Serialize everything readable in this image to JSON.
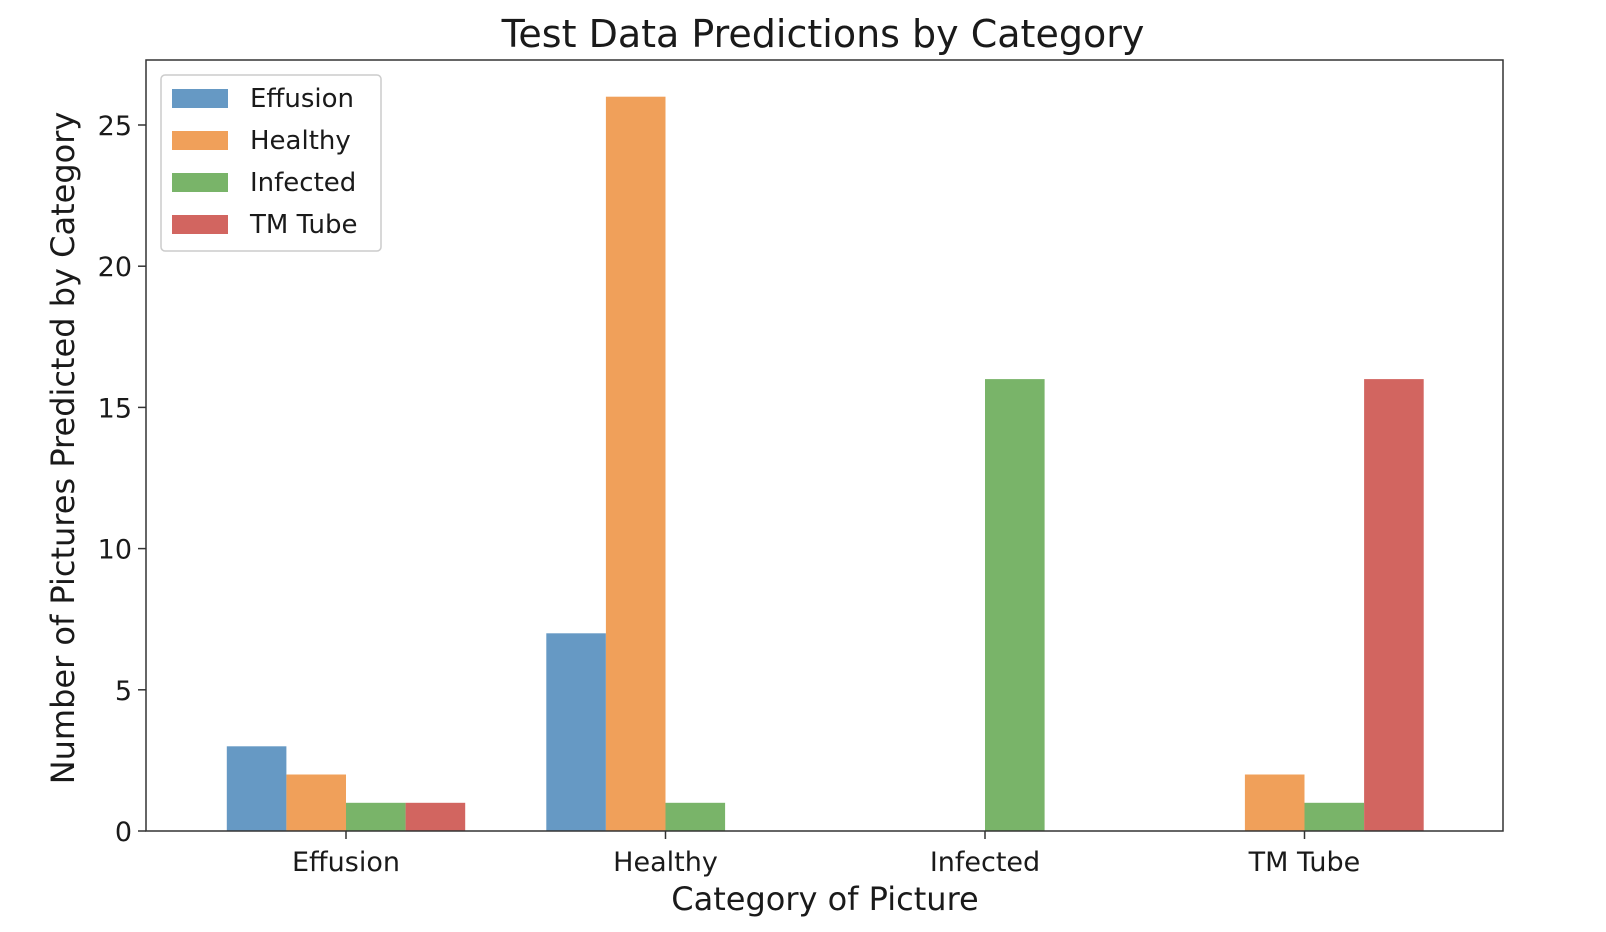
{
  "chart_data": {
    "type": "bar",
    "title": "Test Data Predictions by Category",
    "xlabel": "Category of Picture",
    "ylabel": "Number of Pictures Predicted by Category",
    "categories": [
      "Effusion",
      "Healthy",
      "Infected",
      "TM Tube"
    ],
    "series": [
      {
        "name": "Effusion",
        "color": "#6699c4",
        "values": [
          3,
          7,
          0,
          0
        ]
      },
      {
        "name": "Healthy",
        "color": "#f0a05a",
        "values": [
          2,
          26,
          0,
          2
        ]
      },
      {
        "name": "Infected",
        "color": "#79b469",
        "values": [
          1,
          1,
          16,
          1
        ]
      },
      {
        "name": "TM Tube",
        "color": "#d26560",
        "values": [
          1,
          0,
          0,
          16
        ]
      }
    ],
    "ylim": [
      0,
      27.3
    ],
    "yticks": [
      0,
      5,
      10,
      15,
      20,
      25
    ],
    "grid": false,
    "legend_position": "top-left"
  }
}
